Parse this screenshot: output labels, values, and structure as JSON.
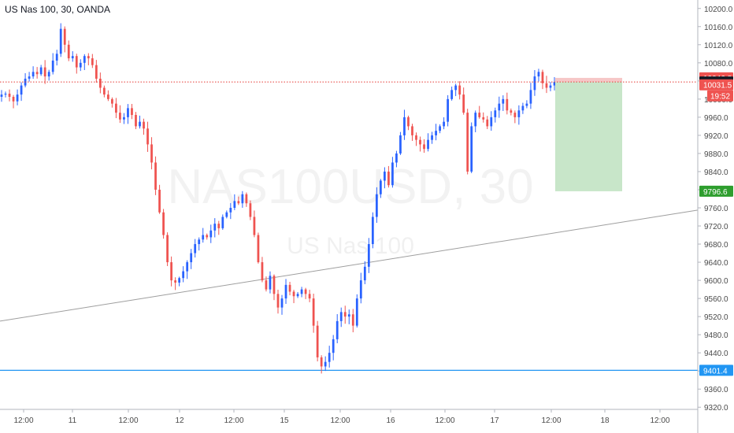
{
  "header": {
    "title": "US Nas 100, 30, OANDA"
  },
  "watermark": {
    "symbol": "NAS100USD, 30",
    "name": "US Nas 100"
  },
  "colors": {
    "up": "#2962ff",
    "down": "#ef5350",
    "axis_text": "#4a4a4a",
    "hline": "#2196f3",
    "trend": "#9e9e9e",
    "ref": "#e53935",
    "target_fill": "#c8e6c9",
    "stop_fill": "#f6c7c7"
  },
  "chart_data": {
    "type": "candlestick",
    "title": "US Nas 100, 30, OANDA",
    "ylim": [
      9310,
      10210
    ],
    "y_ticks": [
      10200.0,
      10160.0,
      10120.0,
      10080.0,
      10040.0,
      10000.0,
      9960.0,
      9920.0,
      9880.0,
      9840.0,
      9800.0,
      9760.0,
      9720.0,
      9680.0,
      9640.0,
      9600.0,
      9560.0,
      9520.0,
      9480.0,
      9440.0,
      9400.0,
      9360.0,
      9320.0
    ],
    "x_ticks": [
      "12:00",
      "11",
      "12:00",
      "12",
      "12:00",
      "15",
      "12:00",
      "16",
      "12:00",
      "17",
      "12:00",
      "18",
      "12:00"
    ],
    "price_labels": [
      {
        "value": 10046.8,
        "text": "10046.8",
        "color": "#ef5350"
      },
      {
        "value": 10037.7,
        "text": "10037.7",
        "color": "#131722"
      },
      {
        "value": 10031.5,
        "text": "10031.5",
        "color": "#ef5350"
      },
      {
        "value": 9796.6,
        "text": "9796.6",
        "color": "#2e9e2e"
      },
      {
        "value": 9401.4,
        "text": "9401.4",
        "color": "#2196f3"
      }
    ],
    "countdown": "19:52",
    "horizontal_line": 9401.4,
    "reference_line": 10037.7,
    "trend_line": {
      "start": [
        0,
        9510
      ],
      "end": [
        886,
        9755
      ]
    },
    "position": {
      "entry": 10037.7,
      "stop": 10046.8,
      "target": 9796.6
    },
    "closes": [
      10010,
      10012,
      10005,
      9995,
      10010,
      10030,
      10045,
      10050,
      10060,
      10055,
      10070,
      10050,
      10060,
      10085,
      10100,
      10155,
      10120,
      10090,
      10095,
      10070,
      10080,
      10095,
      10090,
      10075,
      10045,
      10025,
      10010,
      10000,
      9990,
      9970,
      9955,
      9960,
      9980,
      9965,
      9940,
      9950,
      9935,
      9900,
      9860,
      9800,
      9750,
      9700,
      9640,
      9600,
      9595,
      9605,
      9620,
      9640,
      9660,
      9680,
      9690,
      9700,
      9695,
      9710,
      9725,
      9715,
      9740,
      9750,
      9760,
      9775,
      9770,
      9790,
      9770,
      9740,
      9700,
      9640,
      9600,
      9580,
      9610,
      9570,
      9540,
      9560,
      9590,
      9575,
      9565,
      9570,
      9580,
      9570,
      9560,
      9500,
      9430,
      9410,
      9420,
      9440,
      9470,
      9510,
      9530,
      9520,
      9525,
      9500,
      9560,
      9600,
      9630,
      9680,
      9740,
      9790,
      9820,
      9840,
      9810,
      9860,
      9880,
      9920,
      9960,
      9940,
      9920,
      9910,
      9900,
      9890,
      9910,
      9920,
      9930,
      9940,
      9950,
      10000,
      10020,
      10030,
      10010,
      9970,
      9840,
      9940,
      9970,
      9960,
      9955,
      9940,
      9960,
      9975,
      9990,
      10000,
      9975,
      9970,
      9960,
      9975,
      9985,
      9990,
      10020,
      10050,
      10060,
      10035,
      10025,
      10030,
      10037.7
    ]
  }
}
